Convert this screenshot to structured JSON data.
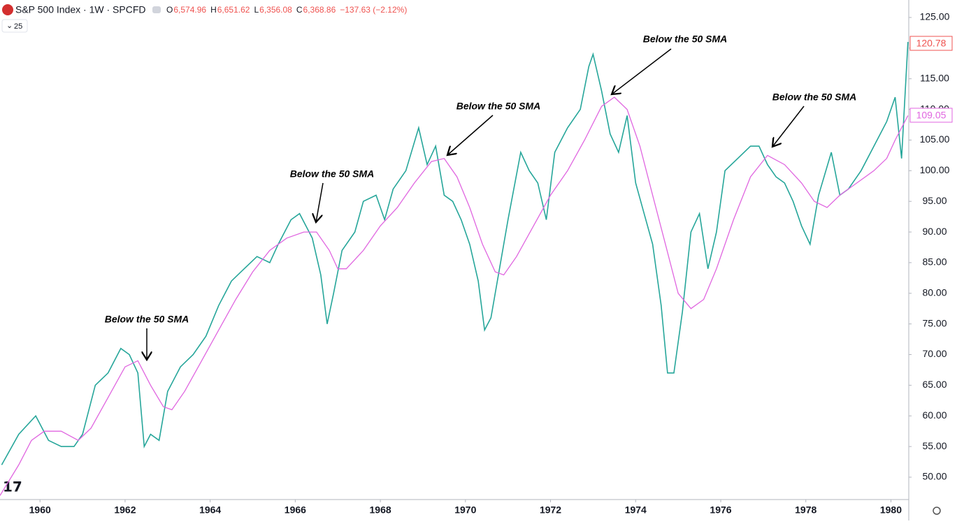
{
  "chart_data": {
    "type": "line",
    "ohlc": [
      {
        "label": "O",
        "value": "6,574.96"
      },
      {
        "label": "H",
        "value": "6,651.62"
      },
      {
        "label": "L",
        "value": "6,356.08"
      },
      {
        "label": "C",
        "value": "6,368.86"
      }
    ],
    "change": "−137.63 (−2.12%)",
    "sma_length": 25,
    "annotations": [
      "Below the 50 SMA",
      "Below the 50 SMA",
      "Below the 50 SMA",
      "Below the 50 SMA",
      "Below the 50 SMA"
    ],
    "xlim": [
      1959.06,
      1980.42
    ],
    "xticks": [
      1960,
      1962,
      1964,
      1966,
      1968,
      1970,
      1972,
      1974,
      1976,
      1978,
      1980
    ],
    "ylim": [
      46.35,
      127.85
    ],
    "yticks": [
      {
        "value": 50,
        "label": "50.00"
      },
      {
        "value": 55,
        "label": "55.00"
      },
      {
        "value": 60,
        "label": "60.00"
      },
      {
        "value": 65,
        "label": "65.00"
      },
      {
        "value": 70,
        "label": "70.00"
      },
      {
        "value": 75,
        "label": "75.00"
      },
      {
        "value": 80,
        "label": "80.00"
      },
      {
        "value": 85,
        "label": "85.00"
      },
      {
        "value": 90,
        "label": "90.00"
      },
      {
        "value": 95,
        "label": "95.00"
      },
      {
        "value": 100,
        "label": "100.00"
      },
      {
        "value": 105,
        "label": "105.00"
      },
      {
        "value": 110,
        "label": "110.00"
      },
      {
        "value": 115,
        "label": "115.00"
      },
      {
        "value": 120,
        "label": "120.00"
      },
      {
        "value": 125,
        "label": "125.00"
      }
    ],
    "series": [
      {
        "name": "S&P 500 Index · 1W · SPCFD",
        "color": "#26a69a",
        "last": 120.78,
        "last_color": "#ef5350",
        "x": [
          1959.1,
          1959.5,
          1959.9,
          1960.2,
          1960.5,
          1960.8,
          1961.0,
          1961.3,
          1961.6,
          1961.9,
          1962.1,
          1962.3,
          1962.45,
          1962.6,
          1962.8,
          1963.0,
          1963.3,
          1963.6,
          1963.9,
          1964.2,
          1964.5,
          1964.8,
          1965.1,
          1965.4,
          1965.6,
          1965.9,
          1966.1,
          1966.4,
          1966.6,
          1966.75,
          1966.9,
          1967.1,
          1967.4,
          1967.6,
          1967.9,
          1968.1,
          1968.3,
          1968.6,
          1968.9,
          1969.1,
          1969.3,
          1969.5,
          1969.7,
          1969.9,
          1970.1,
          1970.3,
          1970.45,
          1970.6,
          1970.8,
          1971.0,
          1971.3,
          1971.5,
          1971.7,
          1971.9,
          1972.1,
          1972.4,
          1972.7,
          1972.9,
          1973.0,
          1973.2,
          1973.4,
          1973.6,
          1973.8,
          1974.0,
          1974.2,
          1974.4,
          1974.6,
          1974.75,
          1974.9,
          1975.1,
          1975.3,
          1975.5,
          1975.7,
          1975.9,
          1976.1,
          1976.4,
          1976.7,
          1976.9,
          1977.1,
          1977.3,
          1977.5,
          1977.7,
          1977.9,
          1978.1,
          1978.3,
          1978.6,
          1978.8,
          1979.0,
          1979.3,
          1979.6,
          1979.9,
          1980.1,
          1980.25,
          1980.4
        ],
        "values": [
          52,
          57,
          60,
          56,
          55,
          55,
          57,
          65,
          67,
          71,
          70,
          67,
          55,
          57,
          56,
          64,
          68,
          70,
          73,
          78,
          82,
          84,
          86,
          85,
          88,
          92,
          93,
          89,
          83,
          75,
          80,
          87,
          90,
          95,
          96,
          92,
          97,
          100,
          107,
          101,
          104,
          96,
          95,
          92,
          88,
          82,
          74,
          76,
          84,
          92,
          103,
          100,
          98,
          92,
          103,
          107,
          110,
          117,
          119,
          113,
          106,
          103,
          109,
          98,
          93,
          88,
          78,
          67,
          67,
          77,
          90,
          93,
          84,
          90,
          100,
          102,
          104,
          104,
          101,
          99,
          98,
          95,
          91,
          88,
          96,
          103,
          96,
          97,
          100,
          104,
          108,
          112,
          102,
          121
        ]
      },
      {
        "color": "#e066e0",
        "last": 109.05,
        "x": [
          1959.06,
          1959.5,
          1959.8,
          1960.1,
          1960.5,
          1960.9,
          1961.2,
          1961.6,
          1962.0,
          1962.3,
          1962.6,
          1962.9,
          1963.1,
          1963.4,
          1963.8,
          1964.2,
          1964.6,
          1965.0,
          1965.4,
          1965.8,
          1966.2,
          1966.5,
          1966.8,
          1967.0,
          1967.2,
          1967.6,
          1968.0,
          1968.4,
          1968.8,
          1969.2,
          1969.5,
          1969.8,
          1970.1,
          1970.4,
          1970.7,
          1970.9,
          1971.2,
          1971.6,
          1972.0,
          1972.4,
          1972.8,
          1973.2,
          1973.5,
          1973.8,
          1974.1,
          1974.4,
          1974.7,
          1975.0,
          1975.3,
          1975.6,
          1975.9,
          1976.3,
          1976.7,
          1977.1,
          1977.5,
          1977.9,
          1978.2,
          1978.5,
          1978.8,
          1979.2,
          1979.6,
          1979.9,
          1980.1,
          1980.4
        ],
        "values": [
          47,
          52,
          56,
          57.5,
          57.5,
          56,
          58,
          63,
          68,
          69,
          65,
          61.5,
          61,
          64,
          69,
          74,
          79,
          83.5,
          87,
          89,
          90,
          90,
          87,
          84,
          84,
          87,
          91,
          94,
          98,
          101.5,
          102,
          99,
          94,
          88,
          83.5,
          83,
          86,
          91,
          96,
          100,
          105,
          110.5,
          112,
          110,
          104,
          96,
          88,
          80,
          77.5,
          79,
          84,
          92,
          99,
          102.5,
          101,
          98,
          95,
          94,
          96,
          98,
          100,
          102,
          105,
          109
        ]
      }
    ]
  }
}
